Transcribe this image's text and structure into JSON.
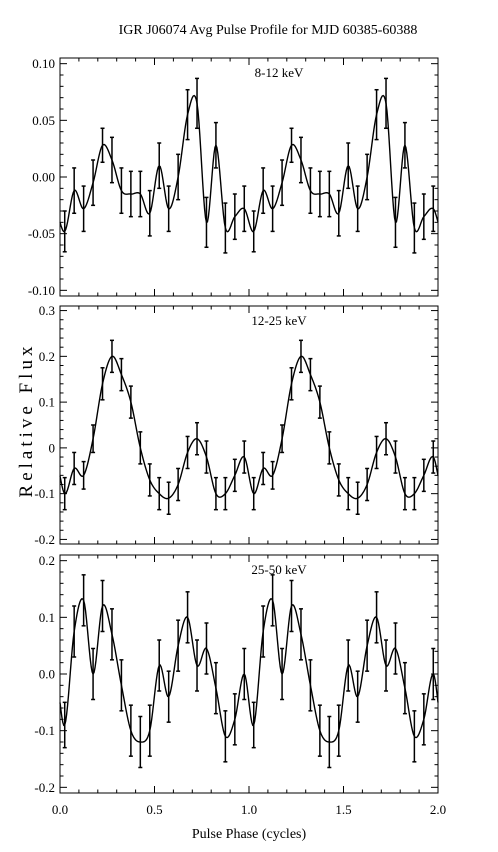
{
  "title": "IGR J06074 Avg Pulse Profile for MJD 60385-60388",
  "xlabel": "Pulse Phase (cycles)",
  "ylabel": "Relative Flux",
  "chart_data": [
    {
      "type": "line",
      "label": "8-12 keV",
      "xlim": [
        0.0,
        2.0
      ],
      "ylim": [
        -0.105,
        0.105
      ],
      "x_ticks": [
        0.0,
        0.5,
        1.0,
        1.5,
        2.0
      ],
      "x_tick_labels": [],
      "y_ticks": [
        -0.1,
        -0.05,
        0.0,
        0.05,
        0.1
      ],
      "y_tick_labels": [
        "-0.10",
        "-0.05",
        "0.00",
        "0.05",
        "0.10"
      ],
      "bins": [
        0.025,
        0.075,
        0.125,
        0.175,
        0.225,
        0.275,
        0.325,
        0.375,
        0.425,
        0.475,
        0.525,
        0.575,
        0.625,
        0.675,
        0.725,
        0.775,
        0.825,
        0.875,
        0.925,
        0.975
      ],
      "values": [
        -0.048,
        -0.012,
        -0.028,
        -0.005,
        0.028,
        0.015,
        -0.012,
        -0.015,
        -0.015,
        -0.032,
        0.01,
        -0.028,
        0.0,
        0.055,
        0.065,
        -0.04,
        0.028,
        -0.045,
        -0.035,
        -0.028
      ],
      "errors": [
        0.018,
        0.02,
        0.02,
        0.02,
        0.015,
        0.02,
        0.02,
        0.02,
        0.02,
        0.02,
        0.02,
        0.02,
        0.02,
        0.022,
        0.022,
        0.022,
        0.02,
        0.022,
        0.02,
        0.02
      ]
    },
    {
      "type": "line",
      "label": "12-25 keV",
      "xlim": [
        0.0,
        2.0
      ],
      "ylim": [
        -0.21,
        0.31
      ],
      "x_ticks": [
        0.0,
        0.5,
        1.0,
        1.5,
        2.0
      ],
      "x_tick_labels": [],
      "y_ticks": [
        -0.2,
        -0.1,
        0.0,
        0.1,
        0.2,
        0.3
      ],
      "y_tick_labels": [
        "-0.2",
        "-0.1",
        "0",
        "0.1",
        "0.2",
        "0.3"
      ],
      "bins": [
        0.025,
        0.075,
        0.125,
        0.175,
        0.225,
        0.275,
        0.325,
        0.375,
        0.425,
        0.475,
        0.525,
        0.575,
        0.625,
        0.675,
        0.725,
        0.775,
        0.825,
        0.875,
        0.925,
        0.975
      ],
      "values": [
        -0.1,
        -0.045,
        -0.06,
        0.02,
        0.14,
        0.2,
        0.16,
        0.1,
        0.0,
        -0.07,
        -0.1,
        -0.11,
        -0.08,
        -0.01,
        0.02,
        -0.02,
        -0.1,
        -0.1,
        -0.06,
        -0.02
      ],
      "errors": [
        0.035,
        0.035,
        0.03,
        0.03,
        0.035,
        0.035,
        0.035,
        0.035,
        0.035,
        0.035,
        0.035,
        0.035,
        0.035,
        0.035,
        0.035,
        0.035,
        0.035,
        0.035,
        0.035,
        0.035
      ]
    },
    {
      "type": "line",
      "label": "25-50 keV",
      "xlim": [
        0.0,
        2.0
      ],
      "ylim": [
        -0.21,
        0.21
      ],
      "x_ticks": [
        0.0,
        0.5,
        1.0,
        1.5,
        2.0
      ],
      "x_tick_labels": [
        "0.0",
        "0.5",
        "1.0",
        "1.5",
        "2.0"
      ],
      "y_ticks": [
        -0.2,
        -0.1,
        0.0,
        0.1,
        0.2
      ],
      "y_tick_labels": [
        "-0.2",
        "-0.1",
        "0.0",
        "0.1",
        "0.2"
      ],
      "bins": [
        0.025,
        0.075,
        0.125,
        0.175,
        0.225,
        0.275,
        0.325,
        0.375,
        0.425,
        0.475,
        0.525,
        0.575,
        0.625,
        0.675,
        0.725,
        0.775,
        0.825,
        0.875,
        0.925,
        0.975
      ],
      "values": [
        -0.09,
        0.075,
        0.13,
        0.0,
        0.12,
        0.07,
        -0.02,
        -0.1,
        -0.12,
        -0.1,
        0.015,
        -0.04,
        0.05,
        0.1,
        0.015,
        0.045,
        -0.025,
        -0.11,
        -0.08,
        0.0
      ],
      "errors": [
        0.04,
        0.045,
        0.045,
        0.045,
        0.045,
        0.045,
        0.045,
        0.045,
        0.045,
        0.045,
        0.045,
        0.045,
        0.045,
        0.045,
        0.045,
        0.045,
        0.045,
        0.045,
        0.045,
        0.045
      ]
    }
  ]
}
